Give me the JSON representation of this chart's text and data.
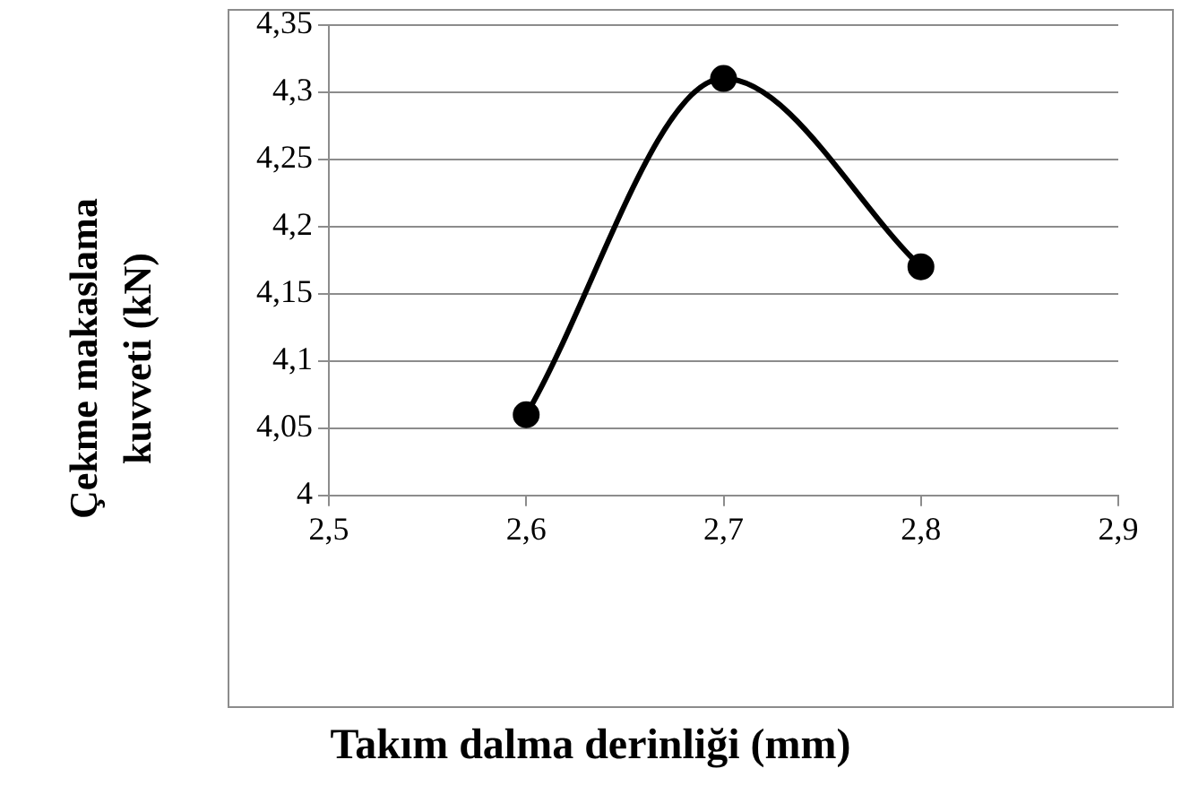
{
  "chart_data": {
    "type": "line",
    "xlabel": "Takım dalma derinliği (mm)",
    "ylabel": "Çekme makaslama kuvveti (kN)",
    "x": [
      2.6,
      2.7,
      2.8
    ],
    "series": [
      {
        "color": "#000000",
        "values": [
          4.06,
          4.31,
          4.17
        ]
      }
    ],
    "xlim": [
      2.5,
      2.9
    ],
    "xticks": [
      {
        "value": 2.5,
        "label": "2,5"
      },
      {
        "value": 2.6,
        "label": "2,6"
      },
      {
        "value": 2.7,
        "label": "2,7"
      },
      {
        "value": 2.8,
        "label": "2,8"
      },
      {
        "value": 2.9,
        "label": "2,9"
      }
    ],
    "ylim": [
      4,
      4.35
    ],
    "yticks": [
      4,
      {
        "value": 4.05,
        "label": "4,05"
      },
      {
        "value": 4.1,
        "label": "4,1"
      },
      {
        "value": 4.15,
        "label": "4,15"
      },
      {
        "value": 4.2,
        "label": "4,2"
      },
      {
        "value": 4.25,
        "label": "4,25"
      },
      {
        "value": 4.3,
        "label": "4,3"
      },
      {
        "value": 4.35,
        "label": "4,35"
      }
    ],
    "grid": "y",
    "marker": "circle",
    "line_style": "solid",
    "legend": false
  }
}
